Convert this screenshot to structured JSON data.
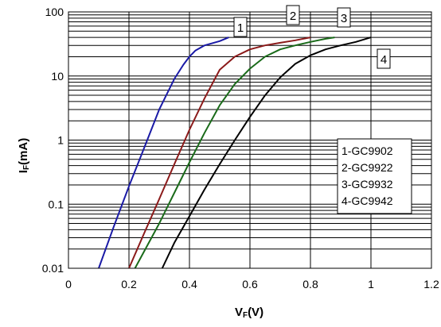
{
  "chart_data": {
    "type": "line",
    "xlabel": "VF(V)",
    "xlabel_main": "V",
    "xlabel_sub": "F",
    "xlabel_rest": "(V)",
    "ylabel": "IF(mA)",
    "ylabel_main": "I",
    "ylabel_sub": "F",
    "ylabel_rest": "(mA)",
    "xlim": [
      0,
      1.2
    ],
    "ylim": [
      0.01,
      100
    ],
    "yscale": "log",
    "grid": true,
    "x_ticks": [
      "0",
      "0.2",
      "0.4",
      "0.6",
      "0.8",
      "1",
      "1.2"
    ],
    "y_ticks": [
      "0.01",
      "0.1",
      "1",
      "10",
      "100"
    ],
    "legend": [
      "1-GC9902",
      "2-GC9922",
      "3-GC9932",
      "4-GC9942"
    ],
    "legend_position": "right",
    "series": [
      {
        "name": "1-GC9902",
        "label": "1",
        "color": "#1a1aa6",
        "x": [
          0.1,
          0.15,
          0.2,
          0.25,
          0.3,
          0.35,
          0.38,
          0.4,
          0.42,
          0.45,
          0.5,
          0.53
        ],
        "y": [
          0.01,
          0.045,
          0.19,
          0.75,
          3.0,
          9.0,
          15.0,
          20.0,
          25.0,
          30.0,
          35.0,
          40.0
        ]
      },
      {
        "name": "2-GC9922",
        "label": "2",
        "color": "#8b1a1a",
        "x": [
          0.2,
          0.25,
          0.3,
          0.35,
          0.4,
          0.45,
          0.5,
          0.55,
          0.6,
          0.65,
          0.7,
          0.75,
          0.8
        ],
        "y": [
          0.01,
          0.035,
          0.12,
          0.42,
          1.45,
          4.5,
          12.5,
          20.0,
          26.0,
          30.0,
          33.0,
          36.0,
          40.0
        ]
      },
      {
        "name": "3-GC9932",
        "label": "3",
        "color": "#1a6b1a",
        "x": [
          0.22,
          0.3,
          0.35,
          0.4,
          0.45,
          0.5,
          0.55,
          0.6,
          0.65,
          0.7,
          0.75,
          0.8,
          0.85,
          0.88
        ],
        "y": [
          0.01,
          0.05,
          0.15,
          0.45,
          1.3,
          3.5,
          7.5,
          13.0,
          20.0,
          26.0,
          30.0,
          34.0,
          38.0,
          40.0
        ]
      },
      {
        "name": "4-GC9942",
        "label": "4",
        "color": "#000000",
        "x": [
          0.31,
          0.35,
          0.4,
          0.45,
          0.5,
          0.55,
          0.6,
          0.65,
          0.7,
          0.75,
          0.8,
          0.85,
          0.9,
          0.95,
          1.0
        ],
        "y": [
          0.01,
          0.025,
          0.065,
          0.17,
          0.42,
          1.0,
          2.3,
          5.0,
          9.5,
          15.5,
          21.0,
          26.0,
          30.0,
          34.0,
          40.0
        ]
      }
    ]
  }
}
